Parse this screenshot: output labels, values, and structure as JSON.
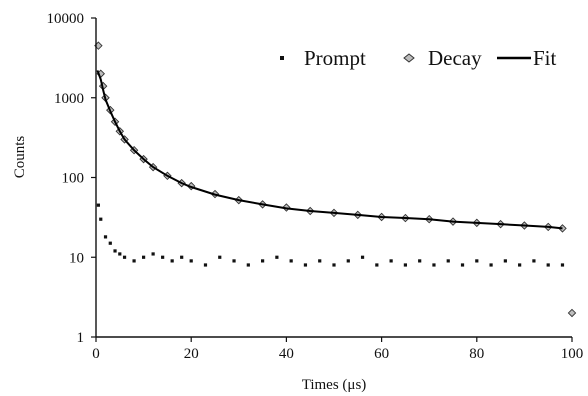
{
  "chart_data": {
    "type": "scatter",
    "title": "",
    "xlabel": "Times (μs)",
    "ylabel": "Counts",
    "xlim": [
      0,
      100
    ],
    "ylim": [
      1,
      10000
    ],
    "yscale": "log",
    "x_ticks": [
      0,
      20,
      40,
      60,
      80,
      100
    ],
    "x_tick_labels": [
      "0",
      "20",
      "40",
      "60",
      "80",
      "100"
    ],
    "y_ticks": [
      1,
      10,
      100,
      1000,
      10000
    ],
    "y_tick_labels": [
      "1",
      "10",
      "100",
      "1000",
      "10000"
    ],
    "grid": false,
    "legend_position": "top-right",
    "series": [
      {
        "name": "Prompt",
        "marker": "small-square",
        "color": "#111111",
        "x": [
          0.5,
          1,
          2,
          3,
          4,
          5,
          6,
          8,
          10,
          12,
          14,
          16,
          18,
          20,
          23,
          26,
          29,
          32,
          35,
          38,
          41,
          44,
          47,
          50,
          53,
          56,
          59,
          62,
          65,
          68,
          71,
          74,
          77,
          80,
          83,
          86,
          89,
          92,
          95,
          98,
          100
        ],
        "y": [
          45,
          30,
          18,
          15,
          12,
          11,
          10,
          9,
          10,
          11,
          10,
          9,
          10,
          9,
          8,
          10,
          9,
          8,
          9,
          10,
          9,
          8,
          9,
          8,
          9,
          10,
          8,
          9,
          8,
          9,
          8,
          9,
          8,
          9,
          8,
          9,
          8,
          9,
          8,
          8,
          2
        ]
      },
      {
        "name": "Decay",
        "marker": "diamond",
        "color": "#999999",
        "x": [
          0.5,
          1,
          1.5,
          2,
          3,
          4,
          5,
          6,
          8,
          10,
          12,
          15,
          18,
          20,
          25,
          30,
          35,
          40,
          45,
          50,
          55,
          60,
          65,
          70,
          75,
          80,
          85,
          90,
          95,
          98,
          100
        ],
        "y": [
          4500,
          2000,
          1400,
          1000,
          700,
          500,
          380,
          300,
          220,
          170,
          135,
          105,
          85,
          78,
          62,
          52,
          46,
          42,
          38,
          36,
          34,
          32,
          31,
          30,
          28,
          27,
          26,
          25,
          24,
          23,
          2
        ]
      },
      {
        "name": "Fit",
        "marker": "line",
        "color": "#000000",
        "x": [
          0.3,
          1,
          1.5,
          2,
          3,
          4,
          5,
          6,
          8,
          10,
          12,
          15,
          18,
          20,
          25,
          30,
          35,
          40,
          45,
          50,
          55,
          60,
          65,
          70,
          75,
          80,
          85,
          90,
          95,
          98
        ],
        "y": [
          2200,
          1700,
          1250,
          950,
          680,
          500,
          380,
          300,
          220,
          170,
          135,
          105,
          85,
          76,
          61,
          52,
          46,
          41,
          38,
          36,
          34,
          32,
          31,
          30,
          28,
          27,
          26,
          25,
          24,
          23
        ]
      }
    ]
  }
}
